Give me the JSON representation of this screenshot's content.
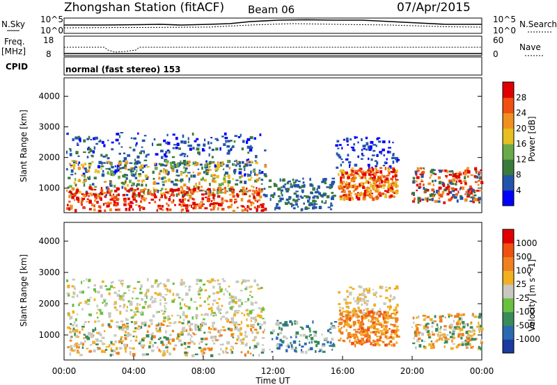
{
  "header": {
    "title": "Zhongshan Station (fitACF)",
    "beam": "Beam 06",
    "date": "07/Apr/2015"
  },
  "panels": {
    "nsky": {
      "label": "N.Sky",
      "tick_top": "10^5",
      "tick_bottom": "10^0"
    },
    "nsearch": {
      "label": "N.Search",
      "tick_top": "10^5",
      "tick_bottom": "10^0"
    },
    "freq": {
      "label_line1": "Freq.",
      "label_line2": "[MHz]",
      "tick_top": "18",
      "tick_bottom": "8"
    },
    "nave": {
      "label": "Nave",
      "tick_top": "60",
      "tick_bottom": "0"
    },
    "cpid": {
      "label": "CPID",
      "text": "normal (fast stereo) 153"
    }
  },
  "colors": {
    "power": [
      "#0000ff",
      "#2255aa",
      "#3a7a3a",
      "#6aaa4a",
      "#e6c020",
      "#f09020",
      "#f05010",
      "#e00000"
    ],
    "velocity": [
      "#1a3aa0",
      "#2a6ab0",
      "#3a8a5a",
      "#6ac040",
      "#c8c8c0",
      "#f0b020",
      "#f08020",
      "#f05010",
      "#e00000"
    ]
  },
  "chart_data": [
    {
      "type": "heatmap",
      "name": "power",
      "ylabel": "Slant Range [km]",
      "xlabel": "",
      "y_ticks": [
        "1000",
        "2000",
        "3000",
        "4000"
      ],
      "ylim": [
        200,
        4600
      ],
      "colorbar_label": "Power [dB]",
      "colorbar_ticks": [
        "4",
        "8",
        "12",
        "16",
        "20",
        "24",
        "28"
      ]
    },
    {
      "type": "heatmap",
      "name": "velocity",
      "ylabel": "Slant Range [km]",
      "xlabel": "Time UT",
      "x_ticks": [
        "00:00",
        "04:00",
        "08:00",
        "12:00",
        "16:00",
        "20:00",
        "00:00"
      ],
      "y_ticks": [
        "1000",
        "2000",
        "3000",
        "4000"
      ],
      "ylim": [
        200,
        4600
      ],
      "colorbar_label": "Velocity [m s^-1]",
      "colorbar_ticks": [
        "1000",
        "500",
        "100",
        "25",
        "-25",
        "-100",
        "-500",
        "-1000"
      ]
    }
  ]
}
